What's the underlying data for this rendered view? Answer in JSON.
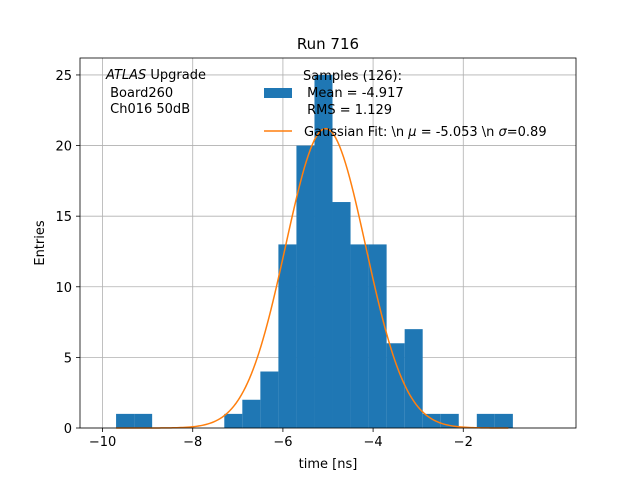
{
  "chart_data": {
    "type": "bar",
    "title": "Run 716",
    "xlabel": "time [ns]",
    "ylabel": "Entries",
    "xlim": [
      -10.5,
      0.5
    ],
    "ylim": [
      0,
      26.2
    ],
    "grid": true,
    "xticks": [
      -10,
      -8,
      -6,
      -4,
      -2
    ],
    "xtick_labels": [
      "−10",
      "−8",
      "−6",
      "−4",
      "−2"
    ],
    "yticks": [
      0,
      5,
      10,
      15,
      20,
      25
    ],
    "ytick_labels": [
      "0",
      "5",
      "10",
      "15",
      "20",
      "25"
    ],
    "annotation": {
      "lines": [
        "ATLAS Upgrade",
        " Board260",
        " Ch016 50dB"
      ],
      "italic_word": "ATLAS",
      "rest_of_first_line": " Upgrade"
    },
    "legend_position": "top-right",
    "histogram": {
      "name_lines": [
        "Samples (126):",
        " Mean = -4.917",
        " RMS = 1.129"
      ],
      "color": "#1f77b4",
      "bin_width": 0.4,
      "bins": [
        {
          "left": -9.7,
          "count": 1
        },
        {
          "left": -9.3,
          "count": 1
        },
        {
          "left": -8.9,
          "count": 0
        },
        {
          "left": -8.5,
          "count": 0
        },
        {
          "left": -8.1,
          "count": 0
        },
        {
          "left": -7.7,
          "count": 0
        },
        {
          "left": -7.3,
          "count": 1
        },
        {
          "left": -6.9,
          "count": 2
        },
        {
          "left": -6.5,
          "count": 4
        },
        {
          "left": -6.1,
          "count": 13
        },
        {
          "left": -5.7,
          "count": 20
        },
        {
          "left": -5.3,
          "count": 25
        },
        {
          "left": -4.9,
          "count": 16
        },
        {
          "left": -4.5,
          "count": 13
        },
        {
          "left": -4.1,
          "count": 13
        },
        {
          "left": -3.7,
          "count": 6
        },
        {
          "left": -3.3,
          "count": 7
        },
        {
          "left": -2.9,
          "count": 1
        },
        {
          "left": -2.5,
          "count": 1
        },
        {
          "left": -2.1,
          "count": 0
        },
        {
          "left": -1.7,
          "count": 1
        },
        {
          "left": -1.3,
          "count": 1
        }
      ]
    },
    "fit": {
      "name_prefix": "Gaussian Fit: \\n ",
      "name_mu": "μ",
      "name_mid": " = -5.053 \\n ",
      "name_sigma": "σ",
      "name_suffix": "=0.89",
      "type": "gaussian",
      "mu": -5.053,
      "sigma": 0.89,
      "amplitude": 21.2,
      "x_range": [
        -9.7,
        -1.0
      ],
      "color": "#ff7f0e"
    }
  }
}
